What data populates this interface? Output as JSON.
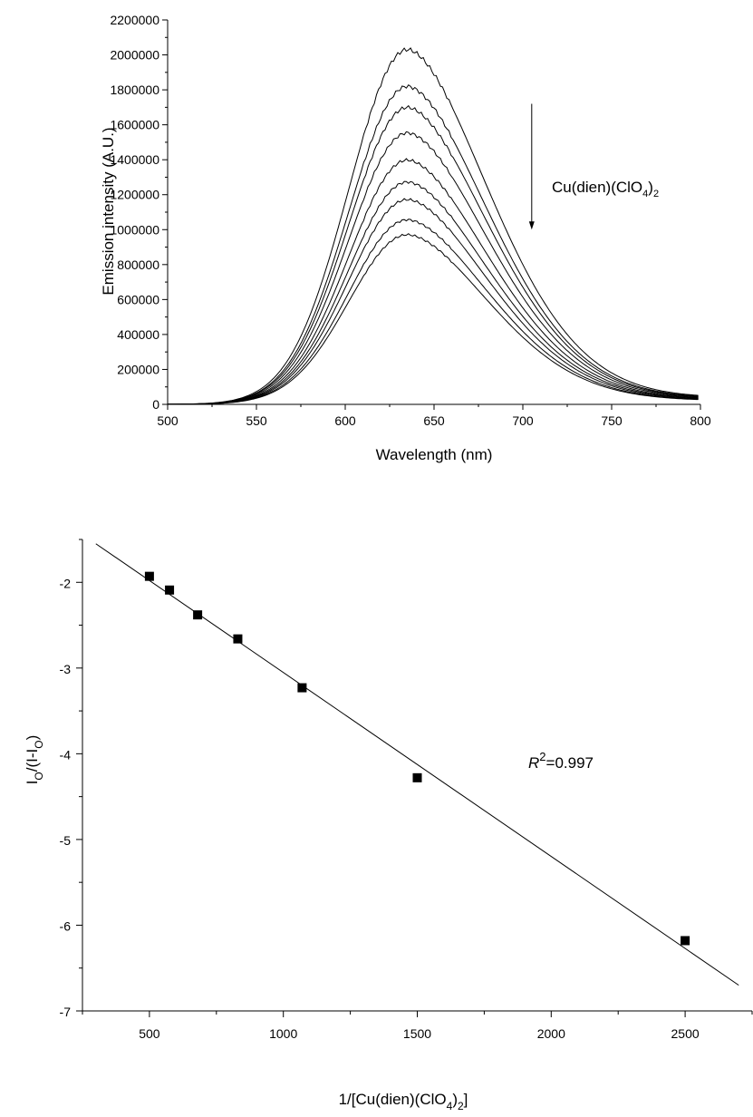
{
  "chart_data": [
    {
      "type": "line",
      "xlabel": "Wavelength (nm)",
      "ylabel": "Emission intensity (A.U.)",
      "xlim": [
        500,
        800
      ],
      "ylim": [
        0,
        2200000
      ],
      "xticks": [
        "500",
        "550",
        "600",
        "650",
        "700",
        "750",
        "800"
      ],
      "yticks": [
        "0",
        "200000",
        "400000",
        "600000",
        "800000",
        "1000000",
        "1200000",
        "1400000",
        "1600000",
        "1800000",
        "2000000",
        "2200000"
      ],
      "annotation": {
        "label": "Cu(dien)(ClO",
        "sub1": "4",
        "close": ")",
        "sub2": "2"
      },
      "arrow": {
        "x": 705,
        "y_start": 1720000,
        "y_end": 1000000
      },
      "peak_wavelength": 635,
      "series_peaks": [
        2020000,
        1810000,
        1690000,
        1545000,
        1390000,
        1265000,
        1165000,
        1050000,
        965000
      ],
      "series_tail_at_800": [
        35000,
        33000,
        31000,
        29000,
        27000,
        25000,
        23000,
        21000,
        20000
      ],
      "grid": false
    },
    {
      "type": "scatter",
      "xlabel_parts": {
        "text": "1/[Cu(dien)(ClO",
        "sub1": "4",
        "close": ")",
        "sub2": "2",
        "end": "]"
      },
      "ylabel_parts": {
        "a": "I",
        "asub": "O",
        "b": "/(I-I",
        "bsub": "O",
        "c": ")"
      },
      "xlim": [
        250,
        2750
      ],
      "ylim": [
        -7,
        -1.5
      ],
      "xticks": [
        "500",
        "1000",
        "1500",
        "2000",
        "2500"
      ],
      "yticks": [
        "-7",
        "-6",
        "-5",
        "-4",
        "-3",
        "-2"
      ],
      "points": [
        {
          "x": 500,
          "y": -1.93
        },
        {
          "x": 575,
          "y": -2.09
        },
        {
          "x": 680,
          "y": -2.38
        },
        {
          "x": 830,
          "y": -2.66
        },
        {
          "x": 1070,
          "y": -3.23
        },
        {
          "x": 1500,
          "y": -4.28
        },
        {
          "x": 2500,
          "y": -6.18
        }
      ],
      "fit_line": {
        "x1": 300,
        "y1": -1.55,
        "x2": 2700,
        "y2": -6.7
      },
      "annotation": {
        "italic": "R",
        "sup": "2",
        "rest": "=0.997"
      },
      "grid": false
    }
  ]
}
